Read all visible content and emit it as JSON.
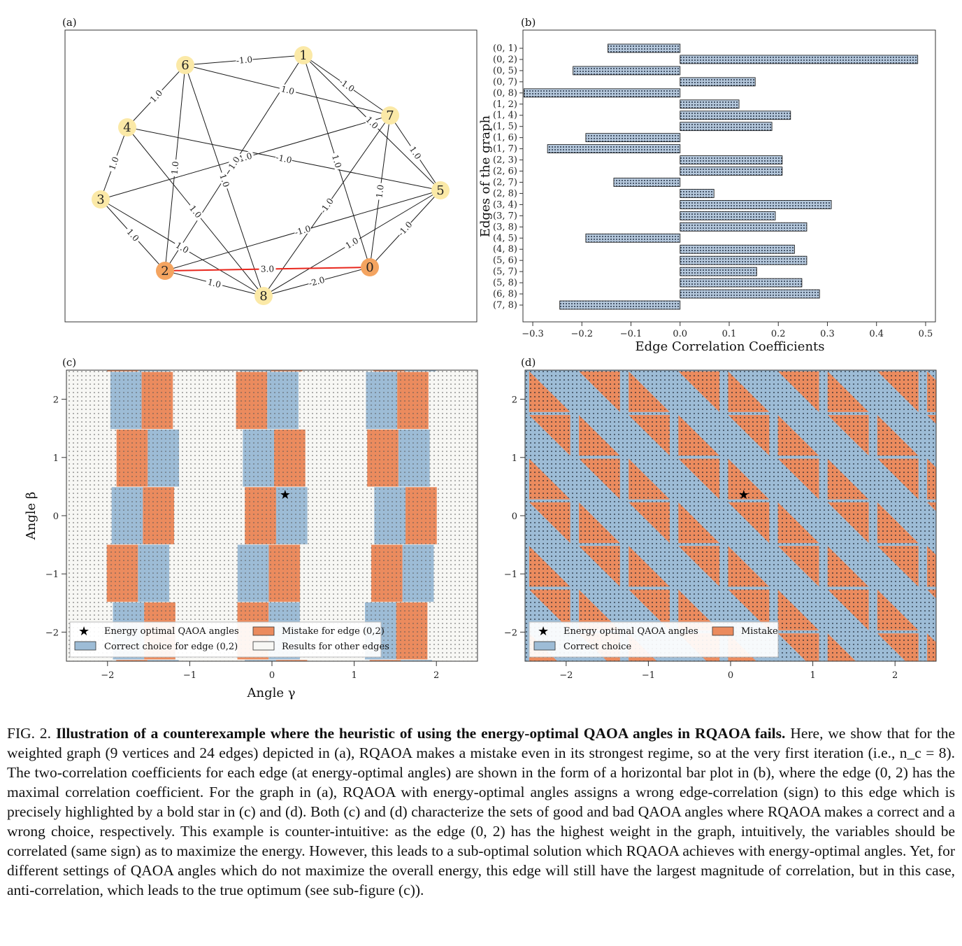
{
  "panel_labels": {
    "a": "(a)",
    "b": "(b)",
    "c": "(c)",
    "d": "(d)"
  },
  "graph": {
    "nodes": [
      {
        "id": "0",
        "color": "#f4a460"
      },
      {
        "id": "1",
        "color": "#fbe9a7"
      },
      {
        "id": "2",
        "color": "#f4a460"
      },
      {
        "id": "3",
        "color": "#fbe9a7"
      },
      {
        "id": "4",
        "color": "#fbe9a7"
      },
      {
        "id": "5",
        "color": "#fbe9a7"
      },
      {
        "id": "6",
        "color": "#fbe9a7"
      },
      {
        "id": "7",
        "color": "#fbe9a7"
      },
      {
        "id": "8",
        "color": "#fbe9a7"
      }
    ],
    "edges": [
      {
        "u": "6",
        "v": "1",
        "w": "-1.0"
      },
      {
        "u": "1",
        "v": "7",
        "w": "-1.0"
      },
      {
        "u": "6",
        "v": "7",
        "w": "1.0"
      },
      {
        "u": "4",
        "v": "6",
        "w": "1.0"
      },
      {
        "u": "4",
        "v": "5",
        "w": "-1.0"
      },
      {
        "u": "4",
        "v": "3",
        "w": "1.0"
      },
      {
        "u": "4",
        "v": "8",
        "w": "1.0"
      },
      {
        "u": "3",
        "v": "7",
        "w": "1.0"
      },
      {
        "u": "3",
        "v": "2",
        "w": "1.0"
      },
      {
        "u": "3",
        "v": "8",
        "w": "1.0"
      },
      {
        "u": "6",
        "v": "2",
        "w": "1.0"
      },
      {
        "u": "6",
        "v": "8",
        "w": "1.0"
      },
      {
        "u": "1",
        "v": "2",
        "w": "1.0"
      },
      {
        "u": "1",
        "v": "0",
        "w": "1.0"
      },
      {
        "u": "1",
        "v": "5",
        "w": "1.0"
      },
      {
        "u": "2",
        "v": "5",
        "w": "-1.0"
      },
      {
        "u": "7",
        "v": "5",
        "w": "1.0"
      },
      {
        "u": "7",
        "v": "8",
        "w": "-1.0"
      },
      {
        "u": "7",
        "v": "0",
        "w": "1.0"
      },
      {
        "u": "5",
        "v": "0",
        "w": "-1.0"
      },
      {
        "u": "5",
        "v": "8",
        "w": "1.0"
      },
      {
        "u": "0",
        "v": "8",
        "w": "-2.0"
      },
      {
        "u": "2",
        "v": "8",
        "w": "1.0"
      },
      {
        "u": "2",
        "v": "0",
        "w": "3.0",
        "highlight": true
      }
    ],
    "highlight_color": "#e8271d"
  },
  "chart_data": [
    {
      "panel": "b",
      "type": "bar",
      "orientation": "horizontal",
      "ylabel": "Edges of the graph",
      "xlabel": "Edge Correlation Coefficients",
      "xlim": [
        -0.32,
        0.52
      ],
      "xticks": [
        "−0.3",
        "−0.2",
        "−0.1",
        "0.0",
        "0.1",
        "0.2",
        "0.3",
        "0.4",
        "0.5"
      ],
      "xtick_values": [
        -0.3,
        -0.2,
        -0.1,
        0.0,
        0.1,
        0.2,
        0.3,
        0.4,
        0.5
      ],
      "highlight_category": "(0, 2)",
      "highlight_color": "#e8271d",
      "bar_color": "#9bb6d2",
      "categories": [
        "(0, 1)",
        "(0, 2)",
        "(0, 5)",
        "(0, 7)",
        "(0, 8)",
        "(1, 2)",
        "(1, 4)",
        "(1, 5)",
        "(1, 6)",
        "(1, 7)",
        "(2, 3)",
        "(2, 6)",
        "(2, 7)",
        "(2, 8)",
        "(3, 4)",
        "(3, 7)",
        "(3, 8)",
        "(4, 5)",
        "(4, 8)",
        "(5, 6)",
        "(5, 7)",
        "(5, 8)",
        "(6, 8)",
        "(7, 8)"
      ],
      "values": [
        -0.147,
        0.484,
        -0.218,
        0.153,
        -0.318,
        0.12,
        0.225,
        0.187,
        -0.192,
        -0.27,
        0.208,
        0.208,
        -0.135,
        0.069,
        0.308,
        0.194,
        0.258,
        -0.192,
        0.233,
        0.258,
        0.156,
        0.248,
        0.284,
        -0.245
      ]
    },
    {
      "panel": "c",
      "type": "heatmap",
      "xlabel": "Angle γ",
      "ylabel": "Angle β",
      "xlim": [
        -2.5,
        2.5
      ],
      "ylim": [
        -2.5,
        2.5
      ],
      "xticks": [
        "−2",
        "−1",
        "0",
        "1",
        "2"
      ],
      "yticks": [
        "2",
        "1",
        "0",
        "−1",
        "−2"
      ],
      "star": [
        0.16,
        0.36
      ],
      "colors": {
        "correct": "#9dbcd6",
        "mistake": "#eb8b5e",
        "other": "#f7f7f4"
      },
      "legend": [
        "Energy optimal QAOA angles",
        "Correct choice for edge (0,2)",
        "Mistake for edge (0,2)",
        "Results for other edges"
      ]
    },
    {
      "panel": "d",
      "type": "heatmap",
      "xlabel": "",
      "ylabel": "",
      "xlim": [
        -2.5,
        2.5
      ],
      "ylim": [
        -2.5,
        2.5
      ],
      "xticks": [
        "−2",
        "−1",
        "0",
        "1",
        "2"
      ],
      "yticks": [
        "2",
        "1",
        "0",
        "−1",
        "−2"
      ],
      "star": [
        0.16,
        0.36
      ],
      "colors": {
        "correct": "#9dbcd6",
        "mistake": "#eb8b5e"
      },
      "legend": [
        "Energy optimal QAOA angles",
        "Correct choice",
        "Mistake"
      ]
    }
  ],
  "caption": {
    "fig_label": "FIG. 2.",
    "lead": "Illustration of a counterexample where the heuristic of using the energy-optimal QAOA angles in RQAOA fails.",
    "body": "Here, we show that for the weighted graph (9 vertices and 24 edges) depicted in (a), RQAOA makes a mistake even in its strongest regime, so at the very first iteration (i.e., n_c = 8). The two-correlation coefficients for each edge (at energy-optimal angles) are shown in the form of a horizontal bar plot in (b), where the edge (0, 2) has the maximal correlation coefficient. For the graph in (a), RQAOA with energy-optimal angles assigns a wrong edge-correlation (sign) to this edge which is precisely highlighted by a bold star in (c) and (d). Both (c) and (d) characterize the sets of good and bad QAOA angles where RQAOA makes a correct and a wrong choice, respectively. This example is counter-intuitive: as the edge (0, 2) has the highest weight in the graph, intuitively, the variables should be correlated (same sign) as to maximize the energy. However, this leads to a sub-optimal solution which RQAOA achieves with energy-optimal angles. Yet, for different settings of QAOA angles which do not maximize the overall energy, this edge will still have the largest magnitude of correlation, but in this case, anti-correlation, which leads to the true optimum (see sub-figure (c))."
  }
}
